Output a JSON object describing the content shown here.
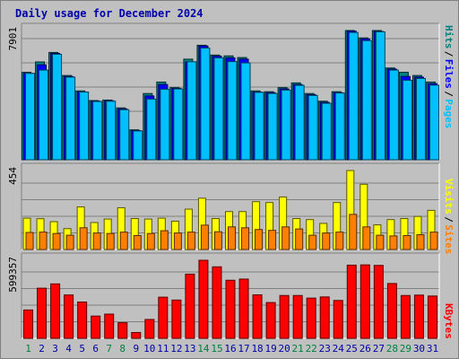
{
  "title": "Daily usage for December 2024",
  "colors": {
    "pages": "#00c0ff",
    "files": "#0000ff",
    "hits": "#008080",
    "visits": "#ffff00",
    "sites": "#ff8000",
    "kbytes": "#ff0000",
    "weekend_day": "#008040",
    "weekday_day": "#0000aa"
  },
  "chart_data": [
    {
      "type": "bar",
      "panel": "hits-files-pages",
      "legend": [
        "Pages",
        "Files",
        "Hits"
      ],
      "legend_placement": "right",
      "y_tick_label": "7901",
      "ylim": [
        0,
        7901
      ],
      "categories": [
        "1",
        "2",
        "3",
        "4",
        "5",
        "6",
        "7",
        "8",
        "9",
        "10",
        "11",
        "12",
        "13",
        "14",
        "15",
        "16",
        "17",
        "18",
        "19",
        "20",
        "21",
        "22",
        "23",
        "24",
        "25",
        "26",
        "27",
        "28",
        "29",
        "30",
        "31"
      ],
      "weekend_days": [
        "1",
        "7",
        "8",
        "14",
        "15",
        "21",
        "22",
        "28",
        "29"
      ],
      "series": [
        {
          "name": "Hits",
          "values": [
            5350,
            5980,
            6560,
            5150,
            4210,
            3620,
            3650,
            3170,
            1830,
            4050,
            4750,
            4410,
            6150,
            7000,
            6400,
            6350,
            6250,
            4210,
            4160,
            4410,
            4700,
            4050,
            3580,
            4160,
            7901,
            7450,
            7901,
            5610,
            5350,
            5150,
            4750
          ]
        },
        {
          "name": "Files",
          "values": [
            5280,
            5800,
            6500,
            5090,
            4140,
            3580,
            3610,
            3110,
            1780,
            3900,
            4600,
            4360,
            5980,
            6960,
            6330,
            6230,
            6150,
            4140,
            4100,
            4330,
            4600,
            3980,
            3510,
            4100,
            7860,
            7390,
            7840,
            5540,
            5090,
            5050,
            4650
          ]
        },
        {
          "name": "Pages",
          "values": [
            5280,
            5480,
            6450,
            5050,
            4140,
            3560,
            3580,
            3060,
            1760,
            3710,
            4310,
            4330,
            5990,
            6830,
            6230,
            6000,
            5920,
            4120,
            4050,
            4260,
            4550,
            3930,
            3450,
            4080,
            7780,
            7280,
            7820,
            5480,
            4860,
            4970,
            4560
          ]
        }
      ]
    },
    {
      "type": "bar",
      "panel": "visits-sites",
      "legend": [
        "Sites",
        "Visits"
      ],
      "legend_placement": "right",
      "y_tick_label": "454",
      "ylim": [
        0,
        454
      ],
      "series": [
        {
          "name": "Visits",
          "values": [
            180,
            177,
            160,
            120,
            245,
            155,
            175,
            240,
            178,
            175,
            180,
            163,
            232,
            295,
            178,
            218,
            218,
            275,
            270,
            302,
            178,
            172,
            150,
            270,
            454,
            375,
            142,
            172,
            178,
            190,
            225
          ]
        },
        {
          "name": "Sites",
          "values": [
            98,
            100,
            92,
            82,
            125,
            95,
            92,
            100,
            80,
            92,
            108,
            95,
            100,
            140,
            102,
            130,
            125,
            115,
            110,
            130,
            118,
            82,
            95,
            100,
            202,
            130,
            82,
            78,
            80,
            85,
            100
          ]
        }
      ]
    },
    {
      "type": "bar",
      "panel": "kbytes",
      "legend": [
        "KBytes"
      ],
      "legend_placement": "right",
      "y_tick_label": "599357",
      "ylim": [
        0,
        599357
      ],
      "series": [
        {
          "name": "KBytes",
          "values": [
            218000,
            385000,
            418000,
            333000,
            279000,
            171000,
            186000,
            120000,
            45000,
            145000,
            316000,
            294000,
            493000,
            599357,
            549000,
            446000,
            455000,
            334000,
            275000,
            329000,
            329000,
            309000,
            318000,
            291000,
            562000,
            564000,
            560000,
            421000,
            329000,
            332000,
            325000
          ]
        }
      ]
    }
  ],
  "days": [
    "1",
    "2",
    "3",
    "4",
    "5",
    "6",
    "7",
    "8",
    "9",
    "10",
    "11",
    "12",
    "13",
    "14",
    "15",
    "16",
    "17",
    "18",
    "19",
    "20",
    "21",
    "22",
    "23",
    "24",
    "25",
    "26",
    "27",
    "28",
    "29",
    "30",
    "31"
  ]
}
